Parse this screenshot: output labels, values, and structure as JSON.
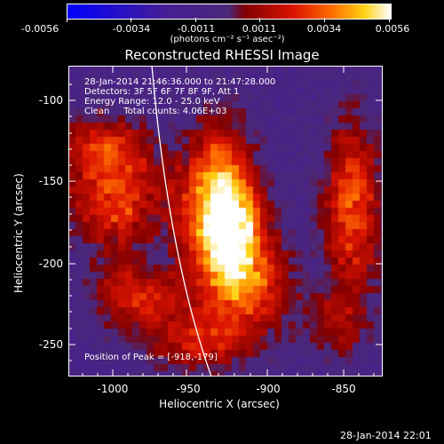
{
  "colorbar": {
    "tick_labels": [
      "-0.0056",
      "-0.0034",
      "-0.0011",
      "0.0011",
      "0.0034",
      "0.0056"
    ],
    "units": "(photons cm⁻² s⁻¹ asec⁻²)",
    "range": [
      -0.0056,
      0.0056
    ]
  },
  "title": "Reconstructed RHESSI Image",
  "info": {
    "line1": "28-Jan-2014 21:46:36.000 to 21:47:28.000",
    "line2": "Detectors: 3F 5F 6F 7F 8F 9F, Att 1",
    "line3": "Energy Range: 12.0 - 25.0 keV",
    "line4": "Clean     Total counts: 4.06E+03"
  },
  "peak_text": "Position of Peak = [-918,-179]",
  "datestamp": "28-Jan-2014 22:01",
  "axes": {
    "xlabel": "Heliocentric X (arcsec)",
    "ylabel": "Heliocentric Y (arcsec)",
    "xticks": [
      "-1000",
      "-950",
      "-900",
      "-850"
    ],
    "yticks": [
      "-100",
      "-150",
      "-200",
      "-250"
    ],
    "xlim": [
      -1024,
      -834
    ],
    "ylim": [
      -270,
      -83
    ]
  },
  "colors": {
    "colorscale": [
      "#0000ff",
      "#3a1aa0",
      "#4a2b8a",
      "#b00000",
      "#ff5000",
      "#ffd000",
      "#ffffff"
    ],
    "limb": "#ffffff"
  }
}
